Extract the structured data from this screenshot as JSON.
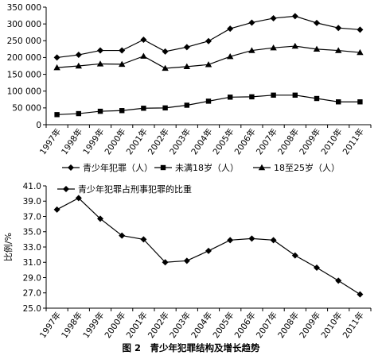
{
  "chart_data": [
    {
      "type": "line",
      "categories": [
        "1997年",
        "1998年",
        "1999年",
        "2000年",
        "2001年",
        "2002年",
        "2003年",
        "2004年",
        "2005年",
        "2006年",
        "2007年",
        "2008年",
        "2009年",
        "2010年",
        "2011年"
      ],
      "ylim": [
        0,
        350000
      ],
      "yticks": [
        "0",
        "50 000",
        "100 000",
        "150 000",
        "200 000",
        "250 000",
        "300 000",
        "350 000"
      ],
      "grid": false,
      "legend_position": "bottom",
      "series": [
        {
          "name": "青少年犯罪（人）",
          "marker": "diamond",
          "values": [
            200000,
            208000,
            221000,
            221000,
            253000,
            218000,
            231000,
            249000,
            286000,
            304000,
            317000,
            323000,
            303000,
            288000,
            283000
          ]
        },
        {
          "name": "未满18岁（人）",
          "marker": "square",
          "values": [
            30000,
            33000,
            40000,
            42000,
            49000,
            50000,
            58000,
            70000,
            82000,
            83000,
            88000,
            88000,
            78000,
            68000,
            68000
          ]
        },
        {
          "name": "18至25岁（人）",
          "marker": "triangle",
          "values": [
            170000,
            175000,
            181000,
            180000,
            204000,
            168000,
            173000,
            179000,
            203000,
            221000,
            229000,
            234000,
            225000,
            221000,
            215000
          ]
        }
      ]
    },
    {
      "type": "line",
      "categories": [
        "1997年",
        "1998年",
        "1999年",
        "2000年",
        "2001年",
        "2002年",
        "2003年",
        "2004年",
        "2005年",
        "2006年",
        "2007年",
        "2008年",
        "2009年",
        "2010年",
        "2011年"
      ],
      "ylabel": "比例/%",
      "ylim": [
        25.0,
        41.0
      ],
      "yticks": [
        "25.0",
        "27.0",
        "29.0",
        "31.0",
        "33.0",
        "35.0",
        "37.0",
        "39.0",
        "41.0"
      ],
      "grid": false,
      "legend_position": "top-left",
      "series": [
        {
          "name": "青少年犯罪占刑事犯罪的比重",
          "marker": "diamond",
          "values": [
            37.9,
            39.4,
            36.7,
            34.5,
            34.0,
            31.0,
            31.2,
            32.5,
            33.9,
            34.1,
            33.9,
            31.9,
            30.3,
            28.6,
            26.8
          ]
        }
      ]
    }
  ],
  "caption": "图 2　青少年犯罪结构及增长趋势"
}
